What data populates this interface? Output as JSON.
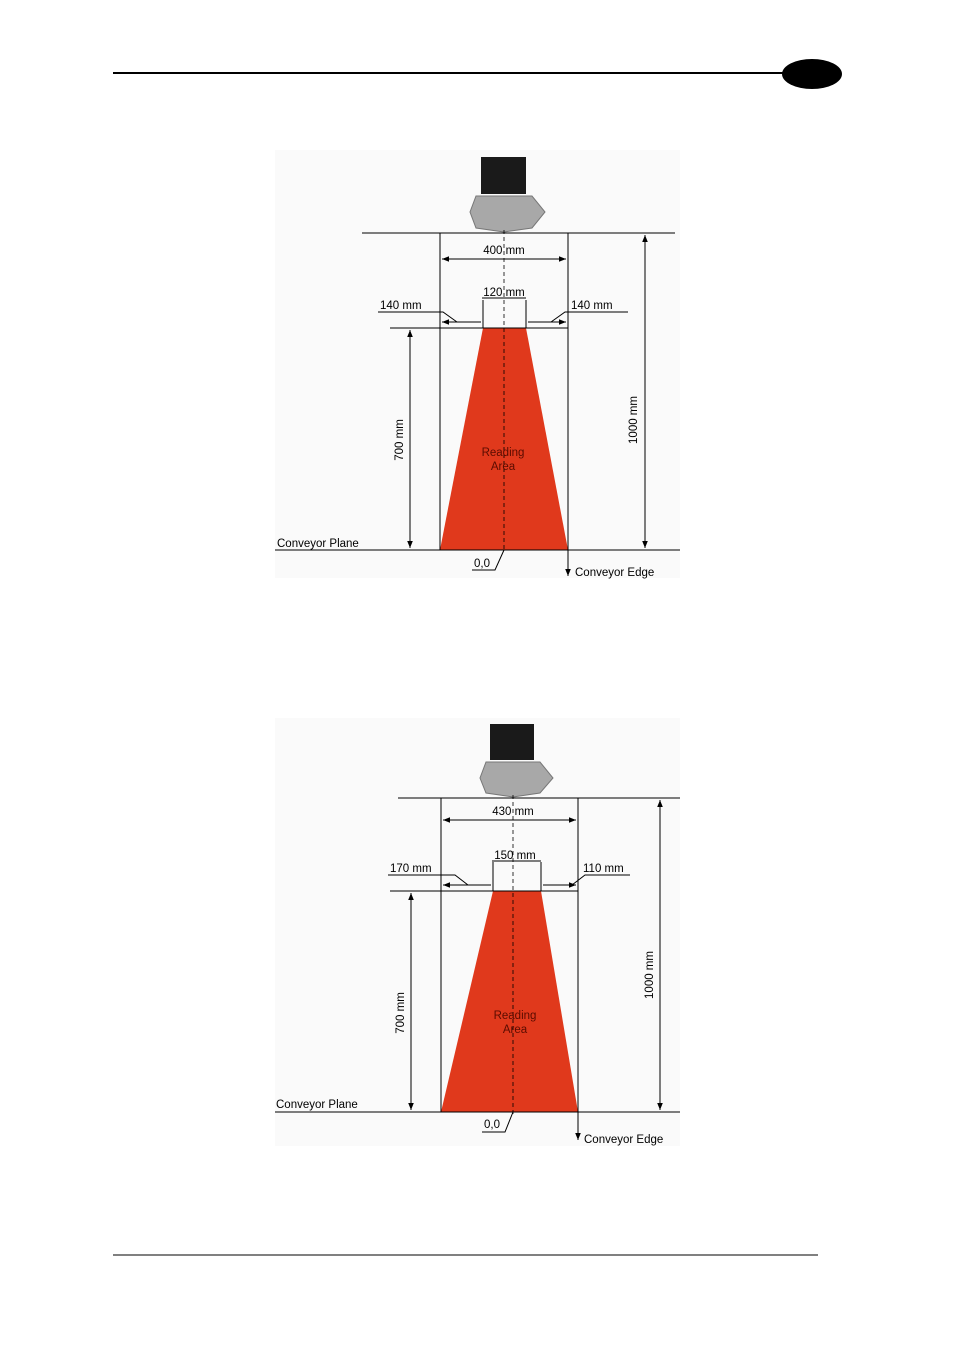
{
  "diagrams": [
    {
      "width_label": "400 mm",
      "center_width_label": "120 mm",
      "left_offset_label": "140 mm",
      "right_offset_label": "140 mm",
      "depth_label": "700 mm",
      "distance_label": "1000 mm",
      "area_label_lines": [
        "Reading",
        "Area"
      ],
      "plane_label": "Conveyor Plane",
      "origin_label": "0,0",
      "edge_label": "Conveyor Edge"
    },
    {
      "width_label": "430 mm",
      "center_width_label": "150 mm",
      "left_offset_label": "170 mm",
      "right_offset_label": "110 mm",
      "depth_label": "700 mm",
      "distance_label": "1000 mm",
      "area_label_lines": [
        "Reading",
        "Area"
      ],
      "plane_label": "Conveyor Plane",
      "origin_label": "0,0",
      "edge_label": "Conveyor Edge"
    }
  ]
}
